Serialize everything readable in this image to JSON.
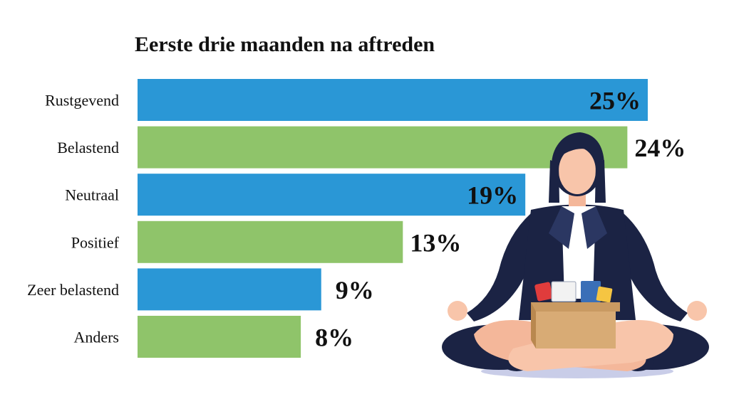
{
  "colors": {
    "blue": "#2a97d6",
    "green": "#8fc46a",
    "text": "#111111"
  },
  "illustration": {
    "name": "meditating-woman-with-box-illustration"
  },
  "chart_data": {
    "type": "bar",
    "orientation": "horizontal",
    "title": "Eerste drie maanden na aftreden",
    "categories": [
      "Rustgevend",
      "Belastend",
      "Neutraal",
      "Positief",
      "Zeer belastend",
      "Anders"
    ],
    "values": [
      25,
      24,
      19,
      13,
      9,
      8
    ],
    "value_labels": [
      "25%",
      "24%",
      "19%",
      "13%",
      "9%",
      "8%"
    ],
    "bar_colors": [
      "#2a97d6",
      "#8fc46a",
      "#2a97d6",
      "#8fc46a",
      "#2a97d6",
      "#8fc46a"
    ],
    "xlim": [
      0,
      25
    ],
    "grid": false,
    "legend": "none"
  }
}
